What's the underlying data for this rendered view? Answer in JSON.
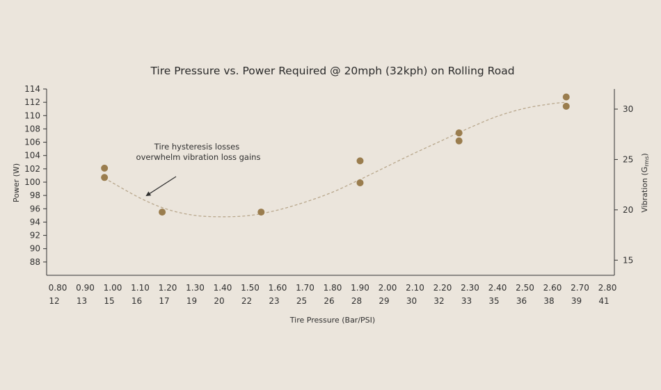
{
  "chart_data": {
    "type": "scatter",
    "title": "Tire Pressure vs. Power Required @ 20mph (32kph) on Rolling Road",
    "xlabel": "Tire Pressure (Bar/PSI)",
    "ylabel": "Power (W)",
    "y2label": "Vibration (G",
    "y2label_sub": "rms",
    "y2label_close": ")",
    "x_ticks_bar": [
      "0.80",
      "0.90",
      "1.00",
      "1.10",
      "1.20",
      "1.30",
      "1.40",
      "1.50",
      "1.60",
      "1.70",
      "1.80",
      "1.90",
      "2.00",
      "2.10",
      "2.20",
      "2.30",
      "2.40",
      "2.50",
      "2.60",
      "2.70",
      "2.80"
    ],
    "x_ticks_psi": [
      "12",
      "13",
      "15",
      "16",
      "17",
      "19",
      "20",
      "22",
      "23",
      "25",
      "26",
      "28",
      "29",
      "30",
      "32",
      "33",
      "35",
      "36",
      "38",
      "39",
      "41"
    ],
    "xlim": [
      0.8,
      2.8
    ],
    "y_ticks": [
      88,
      90,
      92,
      94,
      96,
      98,
      100,
      102,
      104,
      106,
      108,
      110,
      112,
      114
    ],
    "ylim": [
      86,
      114
    ],
    "y2_ticks": [
      15,
      20,
      25,
      30
    ],
    "y2lim": [
      13.5,
      32
    ],
    "series": [
      {
        "x": [
          0.97,
          0.97,
          1.18,
          1.54,
          1.9,
          1.9,
          2.26,
          2.26,
          2.65,
          2.65
        ],
        "y": [
          102.1,
          100.7,
          95.5,
          95.5,
          103.2,
          99.9,
          107.4,
          106.2,
          112.8,
          111.4
        ]
      }
    ],
    "trendline": {
      "x": [
        0.97,
        1.1,
        1.2,
        1.3,
        1.4,
        1.5,
        1.6,
        1.7,
        1.8,
        1.9,
        2.0,
        2.1,
        2.2,
        2.3,
        2.4,
        2.5,
        2.6,
        2.65
      ],
      "y": [
        100.6,
        97.6,
        95.9,
        95.0,
        94.8,
        95.0,
        95.8,
        97.0,
        98.5,
        100.4,
        102.4,
        104.4,
        106.3,
        108.2,
        109.9,
        111.1,
        111.8,
        112.0
      ]
    },
    "annotation": {
      "lines": [
        "Tire hysteresis losses",
        "overwhelm vibration loss gains"
      ],
      "target": [
        1.12,
        97.9
      ]
    },
    "grid": false,
    "legend": "none",
    "colors": {
      "background": "#ebe5dc",
      "marker": "#9a7d4e",
      "trend": "#b8a78c",
      "axis": "#2f2f2f"
    }
  }
}
